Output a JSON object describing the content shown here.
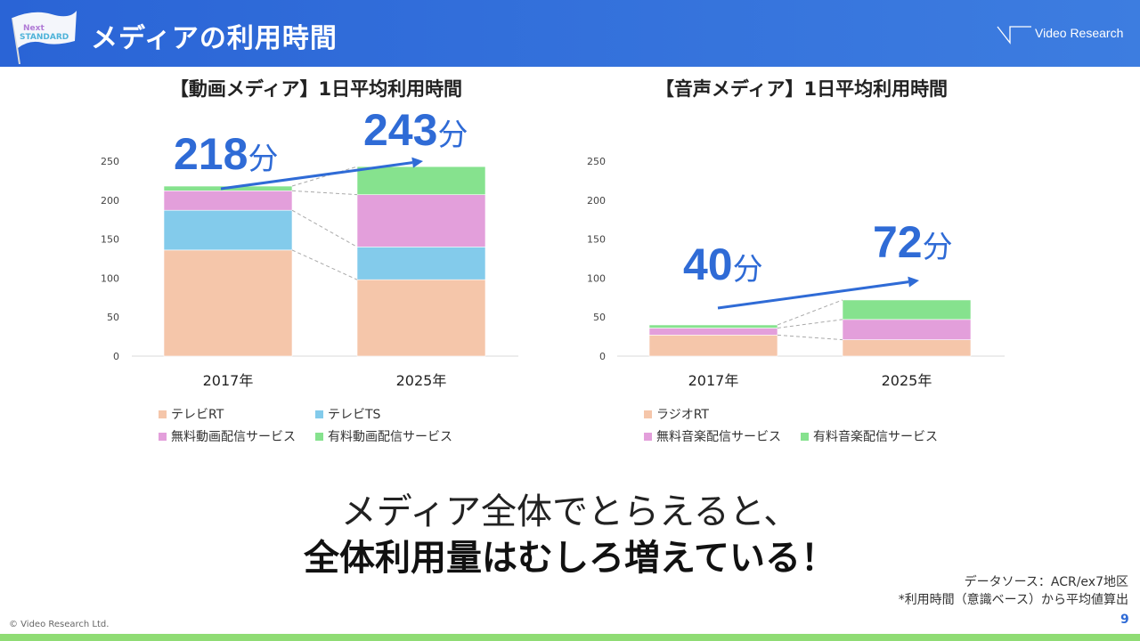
{
  "header": {
    "title": "メディアの利用時間",
    "flag_logo_text": "Next STANDARD",
    "brand_logo_text": "Video Research",
    "colors": {
      "header": "#2a64d6"
    }
  },
  "charts": [
    {
      "title": "【動画メディア】1日平均利用時間",
      "legend": [
        "テレビRT",
        "テレビTS",
        "無料動画配信サービス",
        "有料動画配信サービス"
      ],
      "annotations": [
        {
          "value": "218",
          "unit": "分"
        },
        {
          "value": "243",
          "unit": "分"
        }
      ]
    },
    {
      "title": "【音声メディア】1日平均利用時間",
      "legend": [
        "ラジオRT",
        "無料音楽配信サービス",
        "有料音楽配信サービス"
      ],
      "annotations": [
        {
          "value": "40",
          "unit": "分"
        },
        {
          "value": "72",
          "unit": "分"
        }
      ]
    }
  ],
  "chart_data": [
    {
      "type": "bar",
      "stacked": true,
      "title": "【動画メディア】1日平均利用時間",
      "categories": [
        "2017年",
        "2025年"
      ],
      "ylim": [
        0,
        250
      ],
      "yticks": [
        0,
        50,
        100,
        150,
        200,
        250
      ],
      "grid": false,
      "legend_position": "bottom",
      "totals": [
        218,
        243
      ],
      "series": [
        {
          "name": "テレビRT",
          "values": [
            136,
            98
          ],
          "color": "#f5c6aa"
        },
        {
          "name": "テレビTS",
          "values": [
            51,
            42
          ],
          "color": "#83cbeb"
        },
        {
          "name": "無料動画配信サービス",
          "values": [
            25,
            67
          ],
          "color": "#e39fdb"
        },
        {
          "name": "有料動画配信サービス",
          "values": [
            6,
            36
          ],
          "color": "#86e28e"
        }
      ]
    },
    {
      "type": "bar",
      "stacked": true,
      "title": "【音声メディア】1日平均利用時間",
      "categories": [
        "2017年",
        "2025年"
      ],
      "ylim": [
        0,
        250
      ],
      "yticks": [
        0,
        50,
        100,
        150,
        200,
        250
      ],
      "grid": false,
      "legend_position": "bottom",
      "totals": [
        40,
        72
      ],
      "series": [
        {
          "name": "ラジオRT",
          "values": [
            27,
            21
          ],
          "color": "#f5c6aa"
        },
        {
          "name": "無料音楽配信サービス",
          "values": [
            9,
            26
          ],
          "color": "#e39fdb"
        },
        {
          "name": "有料音楽配信サービス",
          "values": [
            4,
            25
          ],
          "color": "#86e28e"
        }
      ]
    }
  ],
  "message": {
    "line1": "メディア全体でとらえると、",
    "line2": "全体利用量はむしろ増えている！"
  },
  "notes": {
    "source": "データソース：ACR/ex7地区",
    "method": "*利用時間（意識ベース）から平均値算出"
  },
  "footer": {
    "copyright": "© Video Research Ltd.",
    "page_number": "9"
  },
  "accent_color": "#2f6bd6"
}
